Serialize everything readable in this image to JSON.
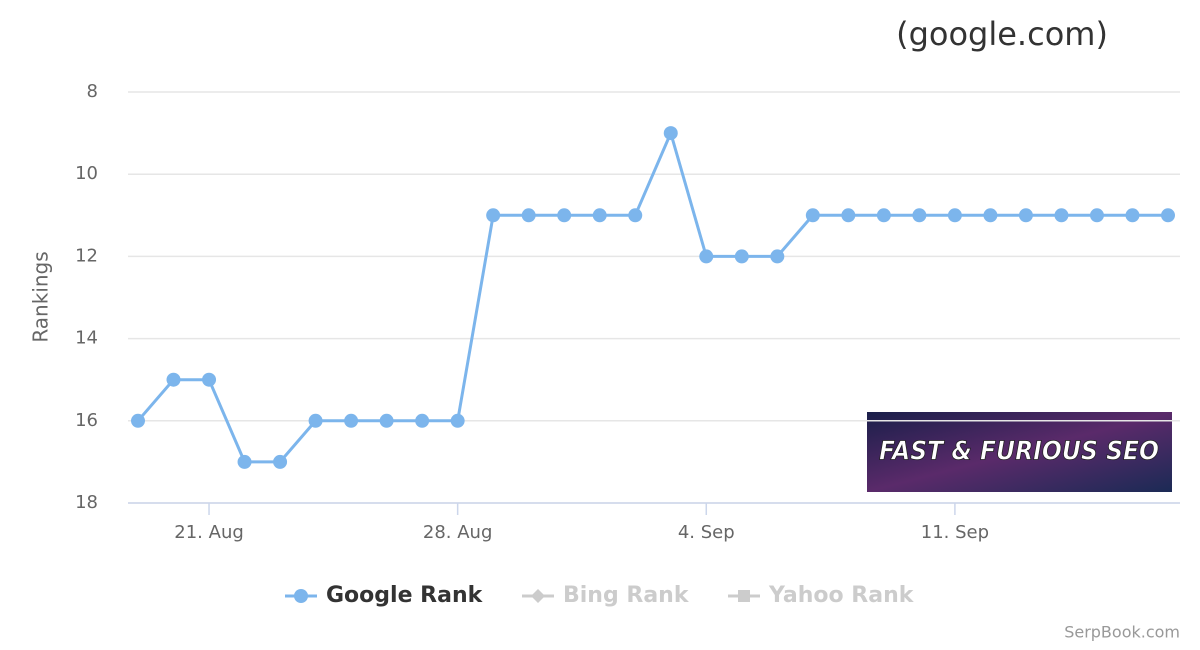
{
  "chart_data": {
    "type": "line",
    "title": "(google.com)",
    "y_label": "Rankings",
    "categories": [
      null,
      null,
      "21. Aug",
      null,
      null,
      null,
      null,
      null,
      null,
      "28. Aug",
      null,
      null,
      null,
      null,
      null,
      null,
      "4. Sep",
      null,
      null,
      null,
      null,
      null,
      null,
      "11. Sep",
      null,
      null,
      null,
      null,
      null,
      null
    ],
    "series": [
      {
        "name": "Google Rank",
        "color": "#7cb5ec",
        "marker": "circle",
        "visible": true,
        "values": [
          16,
          15,
          15,
          17,
          17,
          16,
          16,
          16,
          16,
          16,
          11,
          11,
          11,
          11,
          11,
          9,
          12,
          12,
          12,
          11,
          11,
          11,
          11,
          11,
          11,
          11,
          11,
          11,
          11,
          11
        ]
      },
      {
        "name": "Bing Rank",
        "color": "#cccccc",
        "marker": "diamond",
        "visible": false,
        "values": [
          null,
          null,
          null,
          null,
          null,
          null,
          null,
          null,
          null,
          null,
          null,
          null,
          null,
          null,
          null,
          null,
          null,
          null,
          null,
          null,
          null,
          null,
          null,
          null,
          null,
          null,
          null,
          null,
          null,
          null
        ]
      },
      {
        "name": "Yahoo Rank",
        "color": "#cccccc",
        "marker": "square",
        "visible": false,
        "values": [
          null,
          null,
          null,
          null,
          null,
          null,
          null,
          null,
          null,
          null,
          null,
          null,
          null,
          null,
          null,
          null,
          null,
          null,
          null,
          null,
          null,
          null,
          null,
          null,
          null,
          null,
          null,
          null,
          null,
          null
        ]
      }
    ],
    "ylim": [
      18,
      8
    ],
    "yticks": [
      8,
      10,
      12,
      14,
      16,
      18
    ],
    "grid": true,
    "banner": "FAST & FURIOUS SEO",
    "credit": "SerpBook.com"
  }
}
